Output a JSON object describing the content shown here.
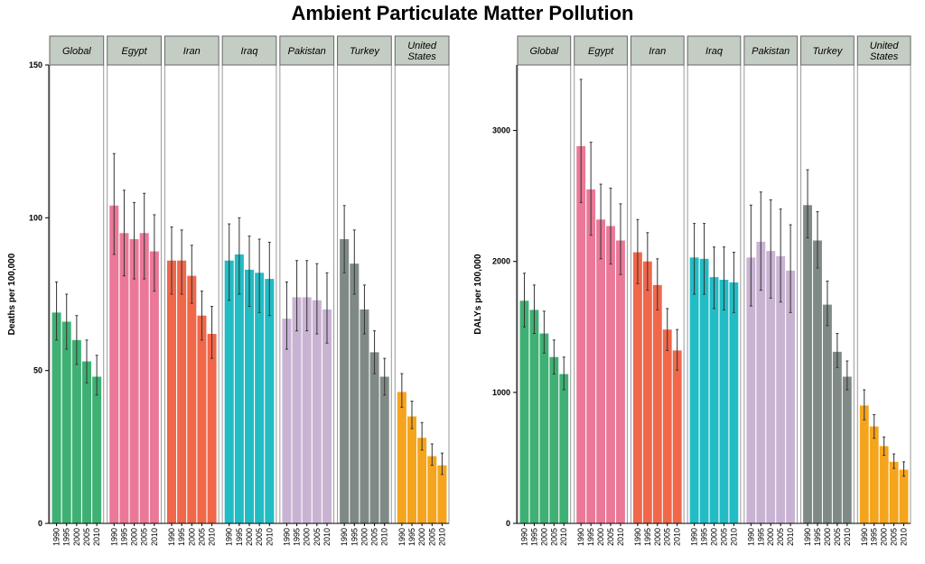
{
  "title": "Ambient Particulate Matter Pollution",
  "colors": {
    "Global": "#3fb073",
    "Egypt": "#ea7896",
    "Iran": "#f0674a",
    "Iraq": "#22bcc4",
    "Pakistan": "#c9b3d3",
    "Turkey": "#7f8a86",
    "United States": "#f5a51d",
    "strip": "#c4cdc3",
    "errorbar": "#333333"
  },
  "chart_data": [
    {
      "type": "bar",
      "title": "Ambient Particulate Matter Pollution",
      "ylabel": "Deaths per 100,000",
      "xlabel": "",
      "ylim": [
        0,
        150
      ],
      "yticks": [
        0,
        50,
        100,
        150
      ],
      "panels": [
        "Global",
        "Egypt",
        "Iran",
        "Iraq",
        "Pakistan",
        "Turkey",
        "United States"
      ],
      "panel_labels": [
        "Global",
        "Egypt",
        "Iran",
        "Iraq",
        "Pakistan",
        "Turkey",
        "United\nStates"
      ],
      "categories": [
        "1990",
        "1995",
        "2000",
        "2005",
        "2010"
      ],
      "series": [
        {
          "name": "Global",
          "values": [
            69,
            66,
            60,
            53,
            48
          ],
          "lower": [
            60,
            57,
            52,
            46,
            42
          ],
          "upper": [
            79,
            75,
            68,
            60,
            55
          ]
        },
        {
          "name": "Egypt",
          "values": [
            104,
            95,
            93,
            95,
            89
          ],
          "lower": [
            88,
            81,
            80,
            80,
            76
          ],
          "upper": [
            121,
            109,
            105,
            108,
            101
          ]
        },
        {
          "name": "Iran",
          "values": [
            86,
            86,
            81,
            68,
            62
          ],
          "lower": [
            75,
            75,
            72,
            60,
            54
          ],
          "upper": [
            97,
            96,
            91,
            76,
            71
          ]
        },
        {
          "name": "Iraq",
          "values": [
            86,
            88,
            83,
            82,
            80
          ],
          "lower": [
            73,
            75,
            71,
            69,
            68
          ],
          "upper": [
            98,
            100,
            94,
            93,
            92
          ]
        },
        {
          "name": "Pakistan",
          "values": [
            67,
            74,
            74,
            73,
            70
          ],
          "lower": [
            57,
            63,
            63,
            62,
            59
          ],
          "upper": [
            79,
            86,
            86,
            85,
            82
          ]
        },
        {
          "name": "Turkey",
          "values": [
            93,
            85,
            70,
            56,
            48
          ],
          "lower": [
            82,
            75,
            62,
            49,
            42
          ],
          "upper": [
            104,
            96,
            78,
            63,
            54
          ]
        },
        {
          "name": "United States",
          "values": [
            43,
            35,
            28,
            22,
            19
          ],
          "lower": [
            38,
            31,
            24,
            19,
            16
          ],
          "upper": [
            49,
            40,
            33,
            26,
            23
          ]
        }
      ]
    },
    {
      "type": "bar",
      "title": "Ambient Particulate Matter Pollution",
      "ylabel": "DALYs per 100,000",
      "xlabel": "",
      "ylim": [
        0,
        3500
      ],
      "yticks": [
        0,
        1000,
        2000,
        3000
      ],
      "panels": [
        "Global",
        "Egypt",
        "Iran",
        "Iraq",
        "Pakistan",
        "Turkey",
        "United States"
      ],
      "panel_labels": [
        "Global",
        "Egypt",
        "Iran",
        "Iraq",
        "Pakistan",
        "Turkey",
        "United\nStates"
      ],
      "categories": [
        "1990",
        "1995",
        "2000",
        "2005",
        "2010"
      ],
      "series": [
        {
          "name": "Global",
          "values": [
            1700,
            1630,
            1450,
            1270,
            1140
          ],
          "lower": [
            1500,
            1450,
            1300,
            1140,
            1020
          ],
          "upper": [
            1910,
            1820,
            1620,
            1400,
            1270
          ]
        },
        {
          "name": "Egypt",
          "values": [
            2880,
            2550,
            2320,
            2270,
            2160
          ],
          "lower": [
            2450,
            2200,
            2020,
            1980,
            1900
          ],
          "upper": [
            3390,
            2910,
            2590,
            2560,
            2440
          ]
        },
        {
          "name": "Iran",
          "values": [
            2070,
            2000,
            1820,
            1480,
            1320
          ],
          "lower": [
            1830,
            1780,
            1630,
            1320,
            1170
          ],
          "upper": [
            2320,
            2220,
            2020,
            1640,
            1480
          ]
        },
        {
          "name": "Iraq",
          "values": [
            2030,
            2020,
            1880,
            1860,
            1840
          ],
          "lower": [
            1750,
            1750,
            1640,
            1630,
            1610
          ],
          "upper": [
            2290,
            2290,
            2110,
            2110,
            2070
          ]
        },
        {
          "name": "Pakistan",
          "values": [
            2030,
            2150,
            2080,
            2040,
            1930
          ],
          "lower": [
            1660,
            1780,
            1720,
            1690,
            1610
          ],
          "upper": [
            2430,
            2530,
            2470,
            2400,
            2280
          ]
        },
        {
          "name": "Turkey",
          "values": [
            2430,
            2160,
            1670,
            1310,
            1120
          ],
          "lower": [
            2180,
            1950,
            1510,
            1190,
            1020
          ],
          "upper": [
            2700,
            2380,
            1850,
            1450,
            1240
          ]
        },
        {
          "name": "United States",
          "values": [
            900,
            740,
            590,
            470,
            410
          ],
          "lower": [
            790,
            650,
            520,
            420,
            360
          ],
          "upper": [
            1020,
            830,
            660,
            530,
            470
          ]
        }
      ]
    }
  ]
}
